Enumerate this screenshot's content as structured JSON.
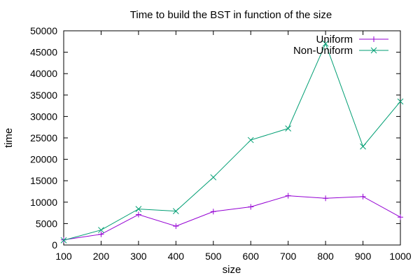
{
  "chart_data": {
    "type": "line",
    "title": "Time to build the BST in function of the size",
    "xlabel": "size",
    "ylabel": "time",
    "x": [
      100,
      200,
      300,
      400,
      500,
      600,
      700,
      800,
      900,
      1000
    ],
    "xlim": [
      100,
      1000
    ],
    "ylim": [
      0,
      50000
    ],
    "x_ticks": [
      100,
      200,
      300,
      400,
      500,
      600,
      700,
      800,
      900,
      1000
    ],
    "y_ticks": [
      0,
      5000,
      10000,
      15000,
      20000,
      25000,
      30000,
      35000,
      40000,
      45000,
      50000
    ],
    "grid": false,
    "legend_position": "top-right",
    "series": [
      {
        "name": "Uniform",
        "color": "#9400d3",
        "marker": "plus",
        "values": [
          1200,
          2500,
          7100,
          4400,
          7800,
          8900,
          11500,
          10900,
          11300,
          6500
        ]
      },
      {
        "name": "Non-Uniform",
        "color": "#009e73",
        "marker": "cross",
        "values": [
          1100,
          3500,
          8400,
          7900,
          15800,
          24500,
          27200,
          47000,
          23000,
          33500
        ]
      }
    ]
  }
}
